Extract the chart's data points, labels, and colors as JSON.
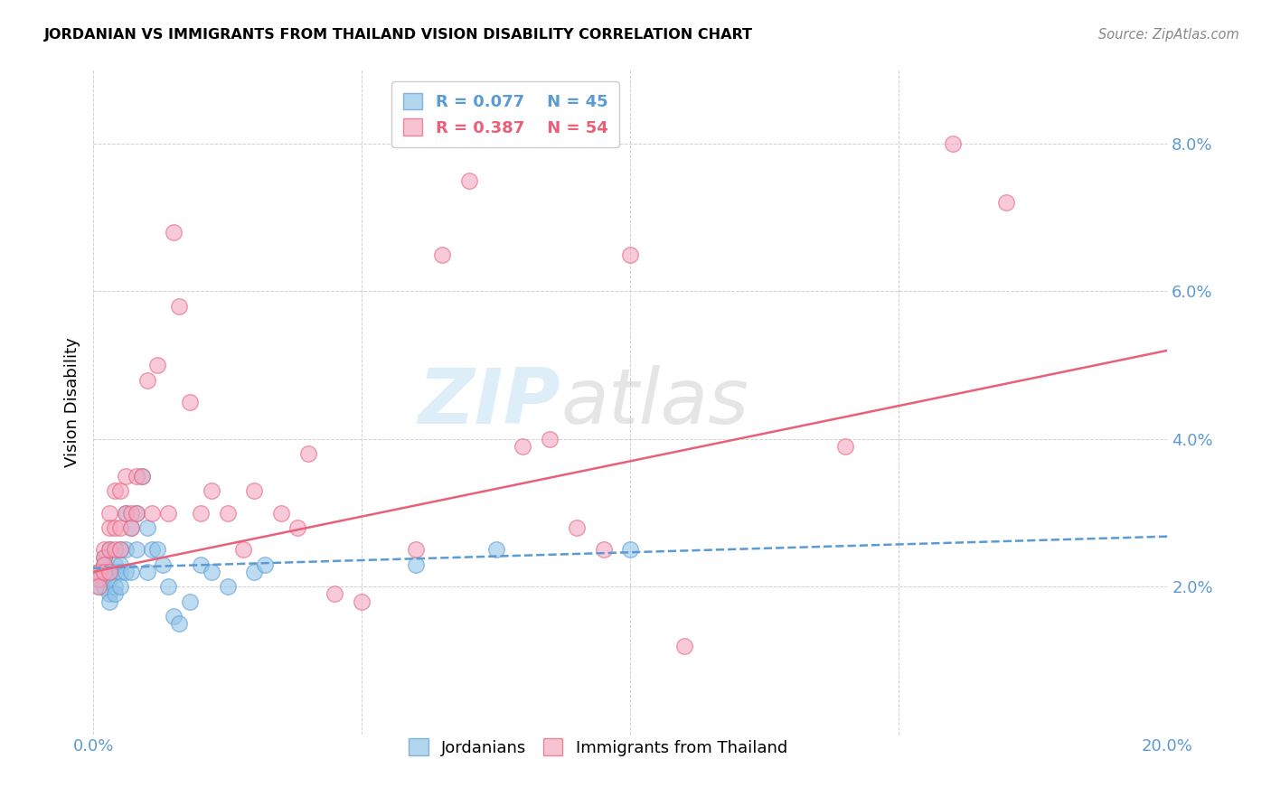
{
  "title": "JORDANIAN VS IMMIGRANTS FROM THAILAND VISION DISABILITY CORRELATION CHART",
  "source": "Source: ZipAtlas.com",
  "ylabel": "Vision Disability",
  "xlim": [
    0.0,
    0.2
  ],
  "ylim": [
    0.0,
    0.09
  ],
  "xtick_labels": [
    "0.0%",
    "",
    "",
    "",
    "20.0%"
  ],
  "ytick_labels": [
    "",
    "2.0%",
    "4.0%",
    "6.0%",
    "8.0%"
  ],
  "legend_R1": "R = 0.077",
  "legend_N1": "N = 45",
  "legend_R2": "R = 0.387",
  "legend_N2": "N = 54",
  "blue_color": "#92c5e8",
  "pink_color": "#f4a8c0",
  "blue_line_color": "#5b9bd5",
  "pink_line_color": "#e8607a",
  "watermark_zip": "ZIP",
  "watermark_atlas": "atlas",
  "jordanians_x": [
    0.001,
    0.001,
    0.001,
    0.002,
    0.002,
    0.002,
    0.002,
    0.003,
    0.003,
    0.003,
    0.003,
    0.003,
    0.004,
    0.004,
    0.004,
    0.004,
    0.005,
    0.005,
    0.005,
    0.005,
    0.006,
    0.006,
    0.006,
    0.007,
    0.007,
    0.008,
    0.008,
    0.009,
    0.01,
    0.01,
    0.011,
    0.012,
    0.013,
    0.014,
    0.015,
    0.016,
    0.018,
    0.02,
    0.022,
    0.025,
    0.03,
    0.032,
    0.06,
    0.075,
    0.1
  ],
  "jordanians_y": [
    0.022,
    0.021,
    0.02,
    0.024,
    0.023,
    0.021,
    0.02,
    0.025,
    0.022,
    0.021,
    0.019,
    0.018,
    0.023,
    0.022,
    0.02,
    0.019,
    0.025,
    0.023,
    0.022,
    0.02,
    0.03,
    0.025,
    0.022,
    0.028,
    0.022,
    0.03,
    0.025,
    0.035,
    0.028,
    0.022,
    0.025,
    0.025,
    0.023,
    0.02,
    0.016,
    0.015,
    0.018,
    0.023,
    0.022,
    0.02,
    0.022,
    0.023,
    0.023,
    0.025,
    0.025
  ],
  "thailand_x": [
    0.001,
    0.001,
    0.001,
    0.001,
    0.002,
    0.002,
    0.002,
    0.002,
    0.003,
    0.003,
    0.003,
    0.003,
    0.004,
    0.004,
    0.004,
    0.005,
    0.005,
    0.005,
    0.006,
    0.006,
    0.007,
    0.007,
    0.008,
    0.008,
    0.009,
    0.01,
    0.011,
    0.012,
    0.014,
    0.015,
    0.016,
    0.018,
    0.02,
    0.022,
    0.025,
    0.028,
    0.03,
    0.035,
    0.038,
    0.04,
    0.045,
    0.05,
    0.06,
    0.065,
    0.07,
    0.08,
    0.085,
    0.09,
    0.095,
    0.1,
    0.11,
    0.14,
    0.16,
    0.17
  ],
  "thailand_y": [
    0.022,
    0.022,
    0.021,
    0.02,
    0.025,
    0.024,
    0.023,
    0.022,
    0.03,
    0.028,
    0.025,
    0.022,
    0.033,
    0.028,
    0.025,
    0.033,
    0.028,
    0.025,
    0.035,
    0.03,
    0.03,
    0.028,
    0.035,
    0.03,
    0.035,
    0.048,
    0.03,
    0.05,
    0.03,
    0.068,
    0.058,
    0.045,
    0.03,
    0.033,
    0.03,
    0.025,
    0.033,
    0.03,
    0.028,
    0.038,
    0.019,
    0.018,
    0.025,
    0.065,
    0.075,
    0.039,
    0.04,
    0.028,
    0.025,
    0.065,
    0.012,
    0.039,
    0.08,
    0.072
  ],
  "blue_line_x": [
    0.0,
    0.2
  ],
  "blue_line_y": [
    0.0225,
    0.0268
  ],
  "pink_line_x": [
    0.0,
    0.2
  ],
  "pink_line_y": [
    0.022,
    0.052
  ]
}
